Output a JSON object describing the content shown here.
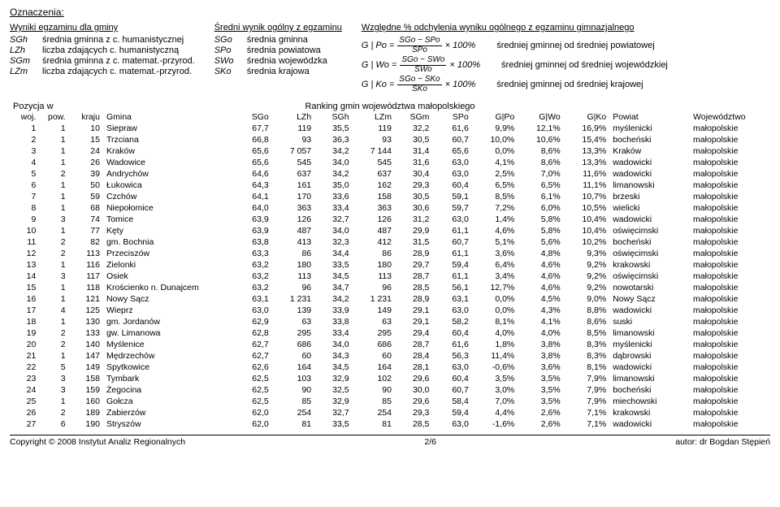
{
  "title": "Oznaczenia:",
  "legend": {
    "col1": {
      "header": "Wyniki egzaminu dla gminy",
      "rows": [
        {
          "k": "SGh",
          "v": "średnia gminna z c. humanistycznej"
        },
        {
          "k": "LZh",
          "v": "liczba zdających c. humanistyczną"
        },
        {
          "k": "SGm",
          "v": "średnia gminna z c. matemat.-przyrod."
        },
        {
          "k": "LZm",
          "v": "liczba zdających c. matemat.-przyrod."
        }
      ]
    },
    "col2": {
      "header": "Średni wynik ogólny z egzaminu",
      "rows": [
        {
          "k": "SGo",
          "v": "średnia gminna"
        },
        {
          "k": "SPo",
          "v": "średnia powiatowa"
        },
        {
          "k": "SWo",
          "v": "średnia wojewódzka"
        },
        {
          "k": "SKo",
          "v": "średnia krajowa"
        }
      ]
    },
    "col3": {
      "header": "Względne % odchylenia wyniku ogólnego z egzaminu gimnazjalnego",
      "formulas": [
        {
          "lhs": "G | Po =",
          "num": "SGo − SPo",
          "den": "SPo",
          "tail": "× 100%",
          "desc": "średniej gminnej od średniej powiatowej"
        },
        {
          "lhs": "G | Wo =",
          "num": "SGo − SWo",
          "den": "SWo",
          "tail": "× 100%",
          "desc": "średniej gminnej od średniej wojewódzkiej"
        },
        {
          "lhs": "G | Ko =",
          "num": "SGo − SKo",
          "den": "SKo",
          "tail": "× 100%",
          "desc": "średniej gminnej od średniej krajowej"
        }
      ]
    }
  },
  "positionLabel": "Pozycja w",
  "rankingTitle": "Ranking gmin województwa małopolskiego",
  "columns": [
    "woj.",
    "pow.",
    "kraju",
    "Gmina",
    "SGo",
    "LZh",
    "SGh",
    "LZm",
    "SGm",
    "SPo",
    "G|Po",
    "G|Wo",
    "G|Ko",
    "Powiat",
    "Województwo"
  ],
  "rows": [
    [
      "1",
      "1",
      "10",
      "Siepraw",
      "67,7",
      "119",
      "35,5",
      "119",
      "32,2",
      "61,6",
      "9,9%",
      "12,1%",
      "16,9%",
      "myślenicki",
      "małopolskie"
    ],
    [
      "2",
      "1",
      "15",
      "Trzciana",
      "66,8",
      "93",
      "36,3",
      "93",
      "30,5",
      "60,7",
      "10,0%",
      "10,6%",
      "15,4%",
      "bocheński",
      "małopolskie"
    ],
    [
      "3",
      "1",
      "24",
      "Kraków",
      "65,6",
      "7 057",
      "34,2",
      "7 144",
      "31,4",
      "65,6",
      "0,0%",
      "8,6%",
      "13,3%",
      "Kraków",
      "małopolskie"
    ],
    [
      "4",
      "1",
      "26",
      "Wadowice",
      "65,6",
      "545",
      "34,0",
      "545",
      "31,6",
      "63,0",
      "4,1%",
      "8,6%",
      "13,3%",
      "wadowicki",
      "małopolskie"
    ],
    [
      "5",
      "2",
      "39",
      "Andrychów",
      "64,6",
      "637",
      "34,2",
      "637",
      "30,4",
      "63,0",
      "2,5%",
      "7,0%",
      "11,6%",
      "wadowicki",
      "małopolskie"
    ],
    [
      "6",
      "1",
      "50",
      "Łukowica",
      "64,3",
      "161",
      "35,0",
      "162",
      "29,3",
      "60,4",
      "6,5%",
      "6,5%",
      "11,1%",
      "limanowski",
      "małopolskie"
    ],
    [
      "7",
      "1",
      "59",
      "Czchów",
      "64,1",
      "170",
      "33,6",
      "158",
      "30,5",
      "59,1",
      "8,5%",
      "6,1%",
      "10,7%",
      "brzeski",
      "małopolskie"
    ],
    [
      "8",
      "1",
      "68",
      "Niepołomice",
      "64,0",
      "363",
      "33,4",
      "363",
      "30,6",
      "59,7",
      "7,2%",
      "6,0%",
      "10,5%",
      "wielicki",
      "małopolskie"
    ],
    [
      "9",
      "3",
      "74",
      "Tomice",
      "63,9",
      "126",
      "32,7",
      "126",
      "31,2",
      "63,0",
      "1,4%",
      "5,8%",
      "10,4%",
      "wadowicki",
      "małopolskie"
    ],
    [
      "10",
      "1",
      "77",
      "Kęty",
      "63,9",
      "487",
      "34,0",
      "487",
      "29,9",
      "61,1",
      "4,6%",
      "5,8%",
      "10,4%",
      "oświęcimski",
      "małopolskie"
    ],
    [
      "11",
      "2",
      "82",
      "gm. Bochnia",
      "63,8",
      "413",
      "32,3",
      "412",
      "31,5",
      "60,7",
      "5,1%",
      "5,6%",
      "10,2%",
      "bocheński",
      "małopolskie"
    ],
    [
      "12",
      "2",
      "113",
      "Przeciszów",
      "63,3",
      "86",
      "34,4",
      "86",
      "28,9",
      "61,1",
      "3,6%",
      "4,8%",
      "9,3%",
      "oświęcimski",
      "małopolskie"
    ],
    [
      "13",
      "1",
      "116",
      "Zielonki",
      "63,2",
      "180",
      "33,5",
      "180",
      "29,7",
      "59,4",
      "6,4%",
      "4,6%",
      "9,2%",
      "krakowski",
      "małopolskie"
    ],
    [
      "14",
      "3",
      "117",
      "Osiek",
      "63,2",
      "113",
      "34,5",
      "113",
      "28,7",
      "61,1",
      "3,4%",
      "4,6%",
      "9,2%",
      "oświęcimski",
      "małopolskie"
    ],
    [
      "15",
      "1",
      "118",
      "Krościenko n. Dunajcem",
      "63,2",
      "96",
      "34,7",
      "96",
      "28,5",
      "56,1",
      "12,7%",
      "4,6%",
      "9,2%",
      "nowotarski",
      "małopolskie"
    ],
    [
      "16",
      "1",
      "121",
      "Nowy Sącz",
      "63,1",
      "1 231",
      "34,2",
      "1 231",
      "28,9",
      "63,1",
      "0,0%",
      "4,5%",
      "9,0%",
      "Nowy Sącz",
      "małopolskie"
    ],
    [
      "17",
      "4",
      "125",
      "Wieprz",
      "63,0",
      "139",
      "33,9",
      "149",
      "29,1",
      "63,0",
      "0,0%",
      "4,3%",
      "8,8%",
      "wadowicki",
      "małopolskie"
    ],
    [
      "18",
      "1",
      "130",
      "gm. Jordanów",
      "62,9",
      "63",
      "33,8",
      "63",
      "29,1",
      "58,2",
      "8,1%",
      "4,1%",
      "8,6%",
      "suski",
      "małopolskie"
    ],
    [
      "19",
      "2",
      "133",
      "gw. Limanowa",
      "62,8",
      "295",
      "33,4",
      "295",
      "29,4",
      "60,4",
      "4,0%",
      "4,0%",
      "8,5%",
      "limanowski",
      "małopolskie"
    ],
    [
      "20",
      "2",
      "140",
      "Myślenice",
      "62,7",
      "686",
      "34,0",
      "686",
      "28,7",
      "61,6",
      "1,8%",
      "3,8%",
      "8,3%",
      "myślenicki",
      "małopolskie"
    ],
    [
      "21",
      "1",
      "147",
      "Mędrzechów",
      "62,7",
      "60",
      "34,3",
      "60",
      "28,4",
      "56,3",
      "11,4%",
      "3,8%",
      "8,3%",
      "dąbrowski",
      "małopolskie"
    ],
    [
      "22",
      "5",
      "149",
      "Spytkowice",
      "62,6",
      "164",
      "34,5",
      "164",
      "28,1",
      "63,0",
      "-0,6%",
      "3,6%",
      "8,1%",
      "wadowicki",
      "małopolskie"
    ],
    [
      "23",
      "3",
      "158",
      "Tymbark",
      "62,5",
      "103",
      "32,9",
      "102",
      "29,6",
      "60,4",
      "3,5%",
      "3,5%",
      "7,9%",
      "limanowski",
      "małopolskie"
    ],
    [
      "24",
      "3",
      "159",
      "Żegocina",
      "62,5",
      "90",
      "32,5",
      "90",
      "30,0",
      "60,7",
      "3,0%",
      "3,5%",
      "7,9%",
      "bocheński",
      "małopolskie"
    ],
    [
      "25",
      "1",
      "160",
      "Gołcza",
      "62,5",
      "85",
      "32,9",
      "85",
      "29,6",
      "58,4",
      "7,0%",
      "3,5%",
      "7,9%",
      "miechowski",
      "małopolskie"
    ],
    [
      "26",
      "2",
      "189",
      "Zabierzów",
      "62,0",
      "254",
      "32,7",
      "254",
      "29,3",
      "59,4",
      "4,4%",
      "2,6%",
      "7,1%",
      "krakowski",
      "małopolskie"
    ],
    [
      "27",
      "6",
      "190",
      "Stryszów",
      "62,0",
      "81",
      "33,5",
      "81",
      "28,5",
      "63,0",
      "-1,6%",
      "2,6%",
      "7,1%",
      "wadowicki",
      "małopolskie"
    ]
  ],
  "footer": {
    "left": "Copyright © 2008 Instytut Analiz Regionalnych",
    "center": "2/6",
    "right": "autor: dr Bogdan Stępień"
  },
  "colWidths": [
    "28px",
    "28px",
    "34px",
    "150px",
    "40px",
    "44px",
    "38px",
    "44px",
    "38px",
    "40px",
    "48px",
    "48px",
    "48px",
    "90px",
    "90px"
  ],
  "numericCols": [
    0,
    1,
    2,
    4,
    5,
    6,
    7,
    8,
    9,
    10,
    11,
    12
  ]
}
